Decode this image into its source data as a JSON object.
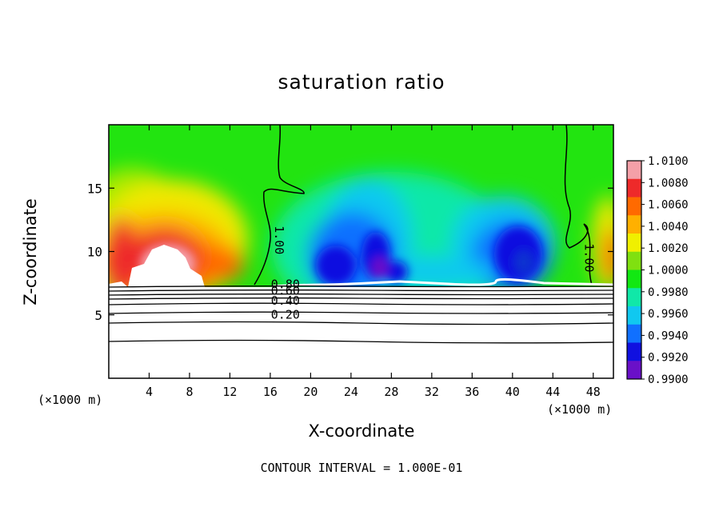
{
  "chart_data": {
    "type": "heatmap",
    "title": "saturation ratio",
    "xlabel": "X-coordinate",
    "ylabel": "Z-coordinate",
    "x_unit_label": "(×1000 m)",
    "xlim": [
      0,
      50
    ],
    "ylim": [
      0,
      20
    ],
    "x_ticks": [
      4,
      8,
      12,
      16,
      20,
      24,
      28,
      32,
      36,
      40,
      44,
      48
    ],
    "y_ticks": [
      5,
      10,
      15
    ],
    "footer": "CONTOUR INTERVAL = 1.000E-01",
    "colorbar": {
      "min": 0.99,
      "max": 1.01,
      "tick_labels": [
        "1.0100",
        "1.0080",
        "1.0060",
        "1.0040",
        "1.0020",
        "1.0000",
        "0.9980",
        "0.9960",
        "0.9940",
        "0.9920",
        "0.9900"
      ],
      "colors": [
        "#f4a0a8",
        "#ee2a2a",
        "#ff6a00",
        "#ffb000",
        "#f0f000",
        "#80e010",
        "#12e812",
        "#10e8a8",
        "#10c8f0",
        "#1070ff",
        "#1010e0",
        "#6a10c8"
      ]
    },
    "contour_labels": [
      {
        "text": "1.00",
        "x": 16.5,
        "z": 10.9
      },
      {
        "text": "1.00",
        "x": 47.2,
        "z": 9.5
      },
      {
        "text": "0.80",
        "x": 17.5,
        "z": 7.1
      },
      {
        "text": "0.60",
        "x": 17.5,
        "z": 6.6
      },
      {
        "text": "0.40",
        "x": 17.5,
        "z": 5.8
      },
      {
        "text": "0.20",
        "x": 17.5,
        "z": 4.7
      }
    ]
  }
}
